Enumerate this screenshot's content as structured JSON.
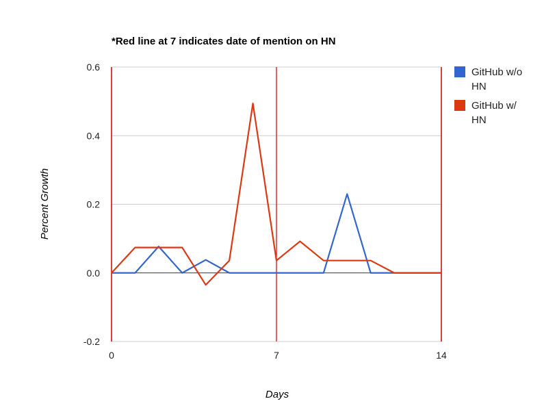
{
  "chart_data": {
    "type": "line",
    "title": "*Red line at 7 indicates date of mention on HN",
    "xlabel": "Days",
    "ylabel": "Percent Growth",
    "xlim": [
      0,
      14
    ],
    "ylim": [
      -0.2,
      0.6
    ],
    "x_ticks": [
      "0",
      "7",
      "14"
    ],
    "y_ticks": [
      "-0.2",
      "0.0",
      "0.2",
      "0.4",
      "0.6"
    ],
    "x": [
      0,
      1,
      2,
      3,
      4,
      5,
      6,
      7,
      8,
      9,
      10,
      11,
      12,
      13,
      14
    ],
    "series": [
      {
        "name": "GitHub w/o HN",
        "legend_lines": [
          "GitHub w/o",
          "HN"
        ],
        "color": "#3366cc",
        "values": [
          0,
          0,
          0.077,
          0,
          0.038,
          0,
          0,
          0,
          0,
          0,
          0.23,
          0,
          0,
          0,
          0
        ]
      },
      {
        "name": "GitHub w/ HN",
        "legend_lines": [
          "GitHub w/",
          "HN"
        ],
        "color": "#dc3912",
        "values": [
          0,
          0.074,
          0.074,
          0.074,
          -0.035,
          0.036,
          0.494,
          0.036,
          0.092,
          0.036,
          0.036,
          0.036,
          0,
          0,
          0
        ]
      }
    ],
    "vertical_markers": [
      0,
      7,
      14
    ],
    "marker_color": "#cc0000",
    "grid": true,
    "legend_position": "right"
  }
}
